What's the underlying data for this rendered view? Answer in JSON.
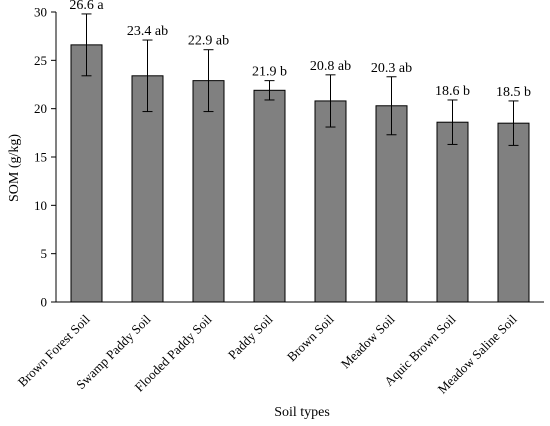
{
  "chart_data": {
    "type": "bar",
    "categories": [
      "Brown Forest Soil",
      "Swamp Paddy Soil",
      "Flooded Paddy Soil",
      "Paddy Soil",
      "Brown Soil",
      "Meadow Soil",
      "Aquic Brown Soil",
      "Meadow Saline Soil"
    ],
    "values": [
      26.6,
      23.4,
      22.9,
      21.9,
      20.8,
      20.3,
      18.6,
      18.5
    ],
    "errors": [
      3.2,
      3.7,
      3.2,
      1.0,
      2.7,
      3.0,
      2.3,
      2.3
    ],
    "data_labels": [
      "26.6 a",
      "23.4 ab",
      "22.9 ab",
      "21.9 b",
      "20.8 ab",
      "20.3 ab",
      "18.6 b",
      "18.5 b"
    ],
    "xlabel": "Soil types",
    "ylabel": "SOM (g/kg)",
    "ylim": [
      0,
      30
    ],
    "yticks": [
      0,
      5,
      10,
      15,
      20,
      25,
      30
    ],
    "grid": false,
    "bar_color": "#808080",
    "bar_edge_color": "#000000"
  }
}
